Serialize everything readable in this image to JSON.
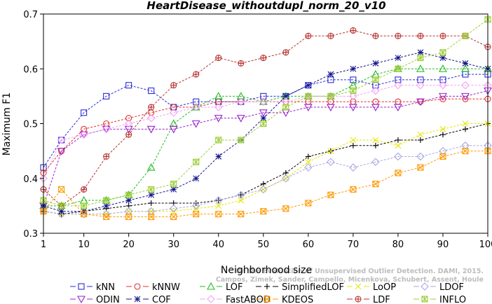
{
  "chart_data": {
    "type": "line",
    "title": "HeartDisease_withoutdupl_norm_20_v10",
    "xlabel": "Neighborhood size",
    "ylabel": "Maximum F1",
    "xlim": [
      1,
      100
    ],
    "ylim": [
      0.3,
      0.7
    ],
    "xticks": [
      1,
      10,
      20,
      30,
      40,
      50,
      60,
      70,
      80,
      90,
      100
    ],
    "yticks": [
      0.3,
      0.4,
      0.5,
      0.6,
      0.7
    ],
    "grid": false,
    "legend_position": "bottom",
    "watermark": [
      "Campos, Zimek, Sander, Campello, Micenkova, Schubert, Assent, Houle",
      "On the Evaluation of Unsupervised Outlier Detection. DAMI, 2015."
    ],
    "x": [
      1,
      5,
      10,
      15,
      20,
      25,
      30,
      35,
      40,
      45,
      50,
      55,
      60,
      65,
      70,
      75,
      80,
      85,
      90,
      95,
      100
    ],
    "series": [
      {
        "name": "kNN",
        "color": "#2b2bd6",
        "marker": "square",
        "values": [
          0.42,
          0.47,
          0.52,
          0.55,
          0.57,
          0.56,
          0.53,
          0.54,
          0.54,
          0.54,
          0.55,
          0.55,
          0.57,
          0.58,
          0.58,
          0.57,
          0.58,
          0.58,
          0.58,
          0.59,
          0.59
        ]
      },
      {
        "name": "kNNW",
        "color": "#e03030",
        "marker": "circle",
        "values": [
          0.41,
          0.45,
          0.49,
          0.5,
          0.51,
          0.52,
          0.53,
          0.53,
          0.54,
          0.54,
          0.54,
          0.54,
          0.54,
          0.54,
          0.54,
          0.54,
          0.54,
          0.54,
          0.545,
          0.545,
          0.545
        ]
      },
      {
        "name": "LOF",
        "color": "#22bb22",
        "marker": "triangle-up",
        "values": [
          0.35,
          0.35,
          0.36,
          0.36,
          0.37,
          0.42,
          0.5,
          0.53,
          0.55,
          0.55,
          0.54,
          0.55,
          0.55,
          0.55,
          0.57,
          0.59,
          0.6,
          0.6,
          0.6,
          0.6,
          0.6
        ]
      },
      {
        "name": "SimplifiedLOF",
        "color": "#000000",
        "marker": "plus",
        "values": [
          0.34,
          0.335,
          0.34,
          0.345,
          0.35,
          0.355,
          0.355,
          0.355,
          0.36,
          0.37,
          0.39,
          0.41,
          0.44,
          0.45,
          0.46,
          0.46,
          0.47,
          0.47,
          0.48,
          0.49,
          0.5
        ]
      },
      {
        "name": "LoOP",
        "color": "#e6e600",
        "marker": "x",
        "values": [
          0.34,
          0.335,
          0.335,
          0.335,
          0.34,
          0.34,
          0.34,
          0.345,
          0.35,
          0.36,
          0.38,
          0.4,
          0.43,
          0.45,
          0.47,
          0.47,
          0.46,
          0.48,
          0.49,
          0.5,
          0.5
        ]
      },
      {
        "name": "LDOF",
        "color": "#a8a8e0",
        "marker": "diamond",
        "values": [
          0.34,
          0.335,
          0.335,
          0.335,
          0.34,
          0.34,
          0.345,
          0.35,
          0.36,
          0.37,
          0.38,
          0.4,
          0.42,
          0.43,
          0.42,
          0.43,
          0.44,
          0.44,
          0.45,
          0.46,
          0.46
        ]
      },
      {
        "name": "ODIN",
        "color": "#9a22cc",
        "marker": "triangle-down",
        "values": [
          0.35,
          0.45,
          0.48,
          0.49,
          0.49,
          0.49,
          0.49,
          0.5,
          0.51,
          0.51,
          0.52,
          0.52,
          0.53,
          0.53,
          0.53,
          0.53,
          0.53,
          0.54,
          0.55,
          0.55,
          0.56
        ]
      },
      {
        "name": "COF",
        "color": "#12128a",
        "marker": "star",
        "values": [
          0.35,
          0.34,
          0.34,
          0.35,
          0.36,
          0.37,
          0.38,
          0.4,
          0.44,
          0.47,
          0.51,
          0.55,
          0.57,
          0.59,
          0.6,
          0.61,
          0.62,
          0.63,
          0.62,
          0.61,
          0.6
        ]
      },
      {
        "name": "FastABOD",
        "color": "#f3a0f3",
        "marker": "diamond",
        "values": [
          0.4,
          0.47,
          0.48,
          0.49,
          0.5,
          0.51,
          0.52,
          0.53,
          0.53,
          0.54,
          0.54,
          0.54,
          0.55,
          0.55,
          0.55,
          0.56,
          0.57,
          0.57,
          0.57,
          0.57,
          0.57
        ]
      },
      {
        "name": "KDEOS",
        "color": "#ff9900",
        "marker": "square-x",
        "values": [
          0.34,
          0.38,
          0.335,
          0.33,
          0.33,
          0.33,
          0.33,
          0.335,
          0.335,
          0.335,
          0.34,
          0.345,
          0.355,
          0.37,
          0.38,
          0.39,
          0.41,
          0.42,
          0.44,
          0.45,
          0.45
        ]
      },
      {
        "name": "LDF",
        "color": "#b83232",
        "marker": "circle-plus",
        "values": [
          0.38,
          0.35,
          0.38,
          0.44,
          0.48,
          0.53,
          0.57,
          0.59,
          0.62,
          0.61,
          0.62,
          0.63,
          0.66,
          0.66,
          0.67,
          0.66,
          0.66,
          0.66,
          0.66,
          0.66,
          0.64
        ]
      },
      {
        "name": "INFLO",
        "color": "#9acd32",
        "marker": "box-x",
        "values": [
          0.36,
          0.35,
          0.35,
          0.36,
          0.37,
          0.38,
          0.39,
          0.43,
          0.47,
          0.47,
          0.5,
          0.53,
          0.55,
          0.55,
          0.56,
          0.58,
          0.6,
          0.62,
          0.63,
          0.66,
          0.69
        ]
      }
    ]
  }
}
